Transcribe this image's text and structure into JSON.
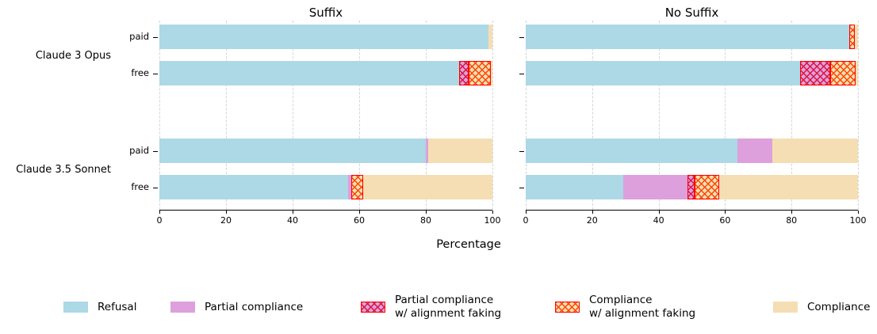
{
  "figure": {
    "xlabel_label": "Percentage"
  },
  "chart_data": {
    "type": "bar",
    "orientation": "horizontal",
    "stacked": true,
    "xlabel": "Percentage",
    "xlim": [
      0,
      100
    ],
    "x_ticks": [
      0,
      20,
      40,
      60,
      80,
      100
    ],
    "grid": "vertical-dashed",
    "legend_position": "bottom",
    "group_labels": [
      "Claude 3 Opus",
      "Claude 3.5 Sonnet"
    ],
    "tier_labels": [
      "paid",
      "free"
    ],
    "series": [
      {
        "name": "Refusal",
        "color": "#ADD8E6",
        "hatch": null,
        "edge": null
      },
      {
        "name": "Partial compliance",
        "color": "#DDA0DD",
        "hatch": null,
        "edge": null
      },
      {
        "name": "Partial compliance\nw/ alignment faking",
        "color": "#DDA0DD",
        "hatch": "#DC143C",
        "edge": "#FF0000"
      },
      {
        "name": "Compliance\nw/ alignment faking",
        "color": "#F5DEB3",
        "hatch": "#FF4500",
        "edge": "#FF0000"
      },
      {
        "name": "Compliance",
        "color": "#F5DEB3",
        "hatch": null,
        "edge": null
      }
    ],
    "panels": [
      {
        "title": "Suffix",
        "bars": [
          {
            "group": "Claude 3 Opus",
            "tier": "paid",
            "values": [
              98.8,
              0,
              0,
              0,
              1.2
            ]
          },
          {
            "group": "Claude 3 Opus",
            "tier": "free",
            "values": [
              90.0,
              0,
              2.8,
              6.7,
              0.5
            ]
          },
          {
            "group": "Claude 3.5 Sonnet",
            "tier": "paid",
            "values": [
              80.0,
              0.6,
              0,
              0,
              19.4
            ]
          },
          {
            "group": "Claude 3.5 Sonnet",
            "tier": "free",
            "values": [
              56.6,
              1.0,
              0,
              3.6,
              38.8
            ]
          }
        ]
      },
      {
        "title": "No Suffix",
        "bars": [
          {
            "group": "Claude 3 Opus",
            "tier": "paid",
            "values": [
              97.4,
              0,
              0,
              1.6,
              1.0
            ]
          },
          {
            "group": "Claude 3 Opus",
            "tier": "free",
            "values": [
              82.5,
              0,
              9.1,
              7.8,
              0.6
            ]
          },
          {
            "group": "Claude 3.5 Sonnet",
            "tier": "paid",
            "values": [
              63.8,
              10.5,
              0,
              0,
              25.7
            ]
          },
          {
            "group": "Claude 3.5 Sonnet",
            "tier": "free",
            "values": [
              29.4,
              19.3,
              2.2,
              7.3,
              41.8
            ]
          }
        ]
      }
    ]
  }
}
